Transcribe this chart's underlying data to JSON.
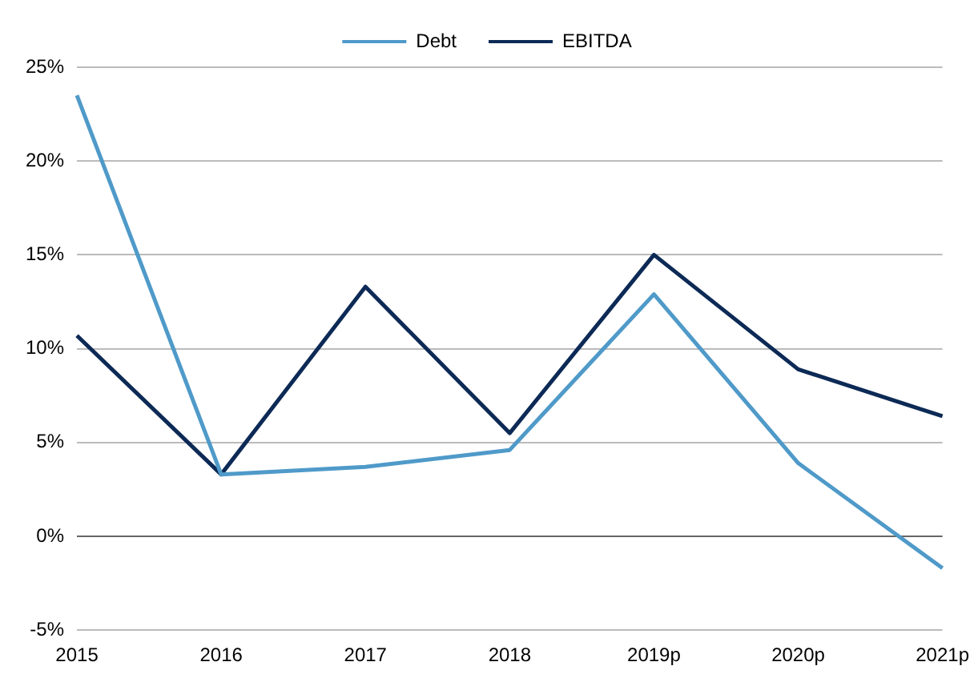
{
  "chart_data": {
    "type": "line",
    "categories": [
      "2015",
      "2016",
      "2017",
      "2018",
      "2019p",
      "2020p",
      "2021p"
    ],
    "series": [
      {
        "name": "Debt",
        "color": "#4f9ac9",
        "values": [
          23.5,
          3.3,
          3.7,
          4.6,
          12.9,
          3.9,
          -1.7
        ]
      },
      {
        "name": "EBITDA",
        "color": "#0d2a56",
        "values": [
          10.7,
          3.3,
          13.3,
          5.5,
          15.0,
          8.9,
          6.4
        ]
      }
    ],
    "ylim": [
      -5,
      25
    ],
    "yticks": [
      {
        "value": -5,
        "label": "-5%"
      },
      {
        "value": 0,
        "label": "0%"
      },
      {
        "value": 5,
        "label": "5%"
      },
      {
        "value": 10,
        "label": "10%"
      },
      {
        "value": 15,
        "label": "15%"
      },
      {
        "value": 20,
        "label": "20%"
      },
      {
        "value": 25,
        "label": "25%"
      }
    ],
    "grid": "y",
    "legend": "top",
    "marker": "none",
    "line_style": "solid"
  }
}
